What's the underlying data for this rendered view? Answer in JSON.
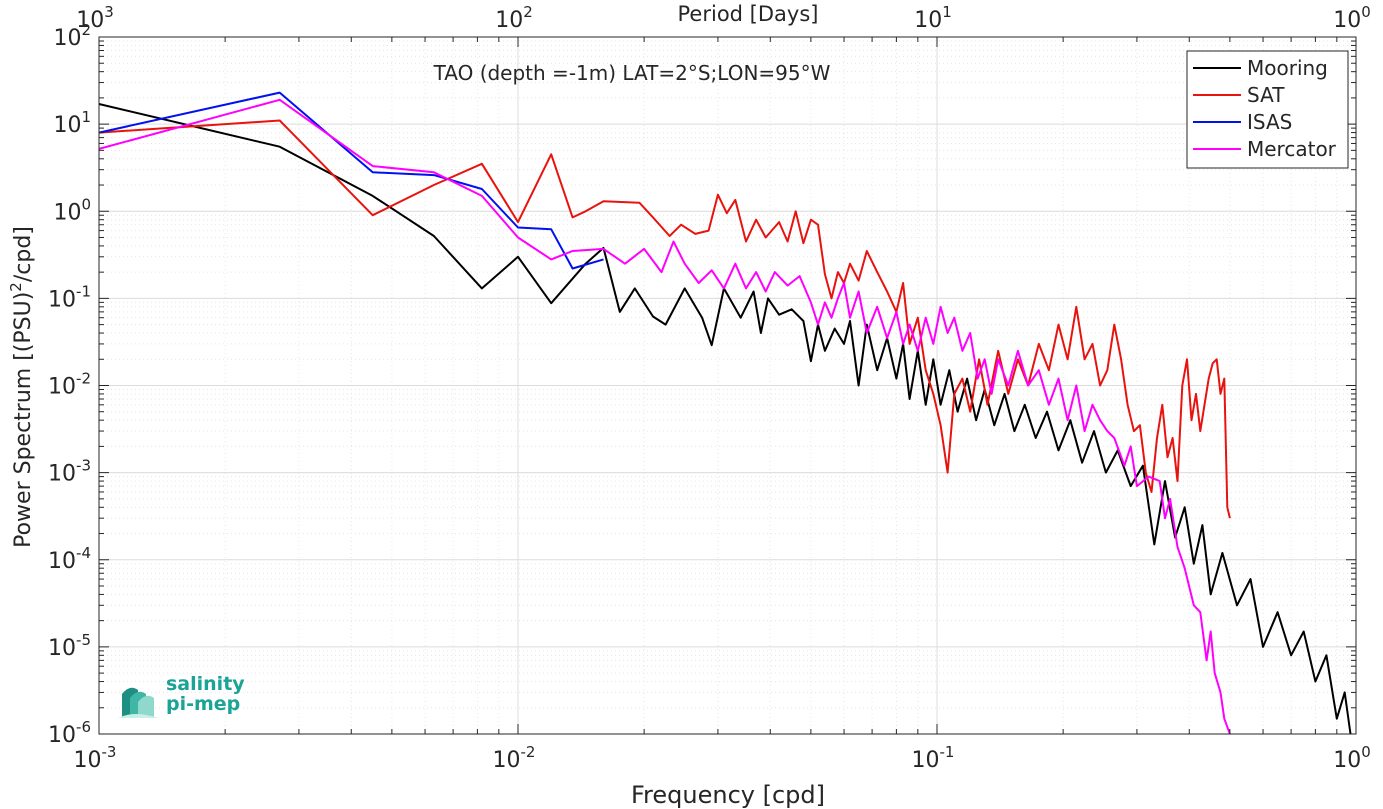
{
  "chart_data": {
    "type": "line",
    "title": "TAO (depth =-1m) LAT=2°S;LON=95°W",
    "xlabel": "Frequency [cpd]",
    "ylabel_main": "Power Spectrum [(PSU)",
    "ylabel_sup": "2",
    "ylabel_tail": "/cpd]",
    "top_axis_label": "Period [Days]",
    "x_scale": "log",
    "y_scale": "log",
    "xlim": [
      0.001,
      1
    ],
    "ylim": [
      1e-06,
      100
    ],
    "grid": true,
    "legend_position": "top-right",
    "x_ticks": [
      {
        "base": "10",
        "exp": "-3"
      },
      {
        "base": "10",
        "exp": "-2"
      },
      {
        "base": "10",
        "exp": "-1"
      },
      {
        "base": "10",
        "exp": "0"
      }
    ],
    "y_ticks": [
      {
        "base": "10",
        "exp": "-6"
      },
      {
        "base": "10",
        "exp": "-5"
      },
      {
        "base": "10",
        "exp": "-4"
      },
      {
        "base": "10",
        "exp": "-3"
      },
      {
        "base": "10",
        "exp": "-2"
      },
      {
        "base": "10",
        "exp": "-1"
      },
      {
        "base": "10",
        "exp": "0"
      },
      {
        "base": "10",
        "exp": "1"
      },
      {
        "base": "10",
        "exp": "2"
      }
    ],
    "top_ticks": [
      {
        "base": "10",
        "exp": "3"
      },
      {
        "base": "10",
        "exp": "2"
      },
      {
        "base": "10",
        "exp": "1"
      },
      {
        "base": "10",
        "exp": "0"
      }
    ],
    "series": [
      {
        "name": "Mooring",
        "color": "#000000",
        "points": [
          [
            0.001,
            17
          ],
          [
            0.0027,
            5.5
          ],
          [
            0.0045,
            1.5
          ],
          [
            0.0063,
            0.52
          ],
          [
            0.0082,
            0.13
          ],
          [
            0.01,
            0.3
          ],
          [
            0.012,
            0.088
          ],
          [
            0.0145,
            0.25
          ],
          [
            0.016,
            0.38
          ],
          [
            0.0175,
            0.07
          ],
          [
            0.019,
            0.13
          ],
          [
            0.021,
            0.062
          ],
          [
            0.0225,
            0.05
          ],
          [
            0.025,
            0.13
          ],
          [
            0.0275,
            0.06
          ],
          [
            0.029,
            0.029
          ],
          [
            0.031,
            0.13
          ],
          [
            0.034,
            0.06
          ],
          [
            0.0365,
            0.12
          ],
          [
            0.038,
            0.04
          ],
          [
            0.0395,
            0.1
          ],
          [
            0.042,
            0.065
          ],
          [
            0.045,
            0.075
          ],
          [
            0.048,
            0.055
          ],
          [
            0.05,
            0.019
          ],
          [
            0.052,
            0.05
          ],
          [
            0.054,
            0.025
          ],
          [
            0.057,
            0.045
          ],
          [
            0.06,
            0.03
          ],
          [
            0.062,
            0.055
          ],
          [
            0.065,
            0.01
          ],
          [
            0.068,
            0.05
          ],
          [
            0.072,
            0.015
          ],
          [
            0.076,
            0.035
          ],
          [
            0.08,
            0.012
          ],
          [
            0.083,
            0.03
          ],
          [
            0.086,
            0.007
          ],
          [
            0.09,
            0.025
          ],
          [
            0.094,
            0.006
          ],
          [
            0.098,
            0.02
          ],
          [
            0.102,
            0.006
          ],
          [
            0.107,
            0.015
          ],
          [
            0.112,
            0.005
          ],
          [
            0.118,
            0.012
          ],
          [
            0.124,
            0.004
          ],
          [
            0.13,
            0.009
          ],
          [
            0.137,
            0.0035
          ],
          [
            0.145,
            0.008
          ],
          [
            0.153,
            0.003
          ],
          [
            0.162,
            0.006
          ],
          [
            0.172,
            0.0025
          ],
          [
            0.183,
            0.005
          ],
          [
            0.195,
            0.0018
          ],
          [
            0.208,
            0.004
          ],
          [
            0.222,
            0.0013
          ],
          [
            0.237,
            0.003
          ],
          [
            0.253,
            0.001
          ],
          [
            0.27,
            0.0018
          ],
          [
            0.29,
            0.0007
          ],
          [
            0.31,
            0.0012
          ],
          [
            0.33,
            0.00015
          ],
          [
            0.35,
            0.0008
          ],
          [
            0.37,
            0.00018
          ],
          [
            0.39,
            0.0004
          ],
          [
            0.41,
            9e-05
          ],
          [
            0.43,
            0.00025
          ],
          [
            0.45,
            4e-05
          ],
          [
            0.48,
            0.00012
          ],
          [
            0.52,
            3e-05
          ],
          [
            0.56,
            6e-05
          ],
          [
            0.6,
            1e-05
          ],
          [
            0.65,
            2.5e-05
          ],
          [
            0.7,
            8e-06
          ],
          [
            0.75,
            1.5e-05
          ],
          [
            0.8,
            4e-06
          ],
          [
            0.85,
            8e-06
          ],
          [
            0.9,
            1.5e-06
          ],
          [
            0.94,
            3e-06
          ],
          [
            0.97,
            1e-06
          ]
        ]
      },
      {
        "name": "SAT",
        "color": "#e8130f",
        "points": [
          [
            0.001,
            8
          ],
          [
            0.0027,
            11
          ],
          [
            0.0045,
            0.9
          ],
          [
            0.0063,
            2
          ],
          [
            0.0082,
            3.5
          ],
          [
            0.01,
            0.75
          ],
          [
            0.012,
            4.5
          ],
          [
            0.0135,
            0.85
          ],
          [
            0.0145,
            1
          ],
          [
            0.016,
            1.3
          ],
          [
            0.0195,
            1.25
          ],
          [
            0.021,
            0.85
          ],
          [
            0.023,
            0.52
          ],
          [
            0.0245,
            0.7
          ],
          [
            0.0265,
            0.55
          ],
          [
            0.0285,
            0.6
          ],
          [
            0.03,
            1.55
          ],
          [
            0.0315,
            0.95
          ],
          [
            0.033,
            1.35
          ],
          [
            0.035,
            0.45
          ],
          [
            0.037,
            0.8
          ],
          [
            0.039,
            0.5
          ],
          [
            0.042,
            0.75
          ],
          [
            0.044,
            0.45
          ],
          [
            0.046,
            1
          ],
          [
            0.048,
            0.43
          ],
          [
            0.05,
            0.8
          ],
          [
            0.052,
            0.7
          ],
          [
            0.054,
            0.19
          ],
          [
            0.056,
            0.1
          ],
          [
            0.058,
            0.2
          ],
          [
            0.06,
            0.15
          ],
          [
            0.062,
            0.25
          ],
          [
            0.065,
            0.16
          ],
          [
            0.068,
            0.35
          ],
          [
            0.072,
            0.2
          ],
          [
            0.076,
            0.12
          ],
          [
            0.08,
            0.07
          ],
          [
            0.083,
            0.15
          ],
          [
            0.086,
            0.03
          ],
          [
            0.09,
            0.06
          ],
          [
            0.094,
            0.015
          ],
          [
            0.098,
            0.008
          ],
          [
            0.102,
            0.0035
          ],
          [
            0.106,
            0.001
          ],
          [
            0.11,
            0.008
          ],
          [
            0.115,
            0.012
          ],
          [
            0.12,
            0.005
          ],
          [
            0.126,
            0.02
          ],
          [
            0.132,
            0.006
          ],
          [
            0.14,
            0.025
          ],
          [
            0.148,
            0.008
          ],
          [
            0.156,
            0.02
          ],
          [
            0.165,
            0.01
          ],
          [
            0.175,
            0.03
          ],
          [
            0.185,
            0.015
          ],
          [
            0.195,
            0.05
          ],
          [
            0.205,
            0.02
          ],
          [
            0.215,
            0.08
          ],
          [
            0.225,
            0.02
          ],
          [
            0.235,
            0.03
          ],
          [
            0.245,
            0.01
          ],
          [
            0.255,
            0.015
          ],
          [
            0.265,
            0.05
          ],
          [
            0.275,
            0.02
          ],
          [
            0.285,
            0.006
          ],
          [
            0.295,
            0.003
          ],
          [
            0.305,
            0.0035
          ],
          [
            0.315,
            0.001
          ],
          [
            0.325,
            0.0006
          ],
          [
            0.335,
            0.0025
          ],
          [
            0.345,
            0.006
          ],
          [
            0.355,
            0.0015
          ],
          [
            0.365,
            0.0025
          ],
          [
            0.375,
            0.0008
          ],
          [
            0.385,
            0.01
          ],
          [
            0.395,
            0.02
          ],
          [
            0.405,
            0.004
          ],
          [
            0.415,
            0.008
          ],
          [
            0.425,
            0.003
          ],
          [
            0.435,
            0.006
          ],
          [
            0.445,
            0.012
          ],
          [
            0.455,
            0.018
          ],
          [
            0.465,
            0.02
          ],
          [
            0.475,
            0.008
          ],
          [
            0.485,
            0.012
          ],
          [
            0.493,
            0.0004
          ],
          [
            0.5,
            0.0003
          ]
        ]
      },
      {
        "name": "ISAS",
        "color": "#0010f0",
        "points": [
          [
            0.001,
            8
          ],
          [
            0.0027,
            23
          ],
          [
            0.0045,
            2.8
          ],
          [
            0.0063,
            2.6
          ],
          [
            0.0082,
            1.8
          ],
          [
            0.01,
            0.65
          ],
          [
            0.012,
            0.62
          ],
          [
            0.0135,
            0.22
          ],
          [
            0.016,
            0.28
          ]
        ]
      },
      {
        "name": "Mercator",
        "color": "#ff00ff",
        "points": [
          [
            0.001,
            5.2
          ],
          [
            0.0027,
            19
          ],
          [
            0.0045,
            3.3
          ],
          [
            0.0063,
            2.8
          ],
          [
            0.0082,
            1.5
          ],
          [
            0.01,
            0.5
          ],
          [
            0.012,
            0.28
          ],
          [
            0.0135,
            0.35
          ],
          [
            0.016,
            0.37
          ],
          [
            0.018,
            0.25
          ],
          [
            0.02,
            0.37
          ],
          [
            0.022,
            0.2
          ],
          [
            0.0235,
            0.45
          ],
          [
            0.025,
            0.25
          ],
          [
            0.027,
            0.15
          ],
          [
            0.029,
            0.21
          ],
          [
            0.031,
            0.13
          ],
          [
            0.033,
            0.25
          ],
          [
            0.035,
            0.13
          ],
          [
            0.037,
            0.2
          ],
          [
            0.039,
            0.12
          ],
          [
            0.041,
            0.2
          ],
          [
            0.044,
            0.14
          ],
          [
            0.047,
            0.18
          ],
          [
            0.05,
            0.09
          ],
          [
            0.052,
            0.05
          ],
          [
            0.054,
            0.09
          ],
          [
            0.056,
            0.06
          ],
          [
            0.058,
            0.1
          ],
          [
            0.06,
            0.15
          ],
          [
            0.062,
            0.06
          ],
          [
            0.065,
            0.12
          ],
          [
            0.068,
            0.04
          ],
          [
            0.072,
            0.08
          ],
          [
            0.076,
            0.035
          ],
          [
            0.08,
            0.07
          ],
          [
            0.083,
            0.03
          ],
          [
            0.086,
            0.05
          ],
          [
            0.09,
            0.025
          ],
          [
            0.094,
            0.06
          ],
          [
            0.098,
            0.03
          ],
          [
            0.102,
            0.08
          ],
          [
            0.106,
            0.04
          ],
          [
            0.11,
            0.06
          ],
          [
            0.115,
            0.025
          ],
          [
            0.12,
            0.04
          ],
          [
            0.125,
            0.012
          ],
          [
            0.13,
            0.02
          ],
          [
            0.135,
            0.008
          ],
          [
            0.14,
            0.02
          ],
          [
            0.148,
            0.01
          ],
          [
            0.156,
            0.025
          ],
          [
            0.165,
            0.01
          ],
          [
            0.175,
            0.015
          ],
          [
            0.185,
            0.006
          ],
          [
            0.195,
            0.012
          ],
          [
            0.205,
            0.004
          ],
          [
            0.215,
            0.01
          ],
          [
            0.225,
            0.003
          ],
          [
            0.235,
            0.006
          ],
          [
            0.245,
            0.004
          ],
          [
            0.255,
            0.003
          ],
          [
            0.265,
            0.0025
          ],
          [
            0.28,
            0.0012
          ],
          [
            0.29,
            0.002
          ],
          [
            0.3,
            0.0007
          ],
          [
            0.32,
            0.0009
          ],
          [
            0.34,
            0.0008
          ],
          [
            0.35,
            0.0003
          ],
          [
            0.36,
            0.0005
          ],
          [
            0.375,
            0.00014
          ],
          [
            0.39,
            8e-05
          ],
          [
            0.41,
            3e-05
          ],
          [
            0.425,
            2.5e-05
          ],
          [
            0.44,
            7e-06
          ],
          [
            0.45,
            1.5e-05
          ],
          [
            0.46,
            5e-06
          ],
          [
            0.475,
            3e-06
          ],
          [
            0.485,
            1.5e-06
          ],
          [
            0.5,
            1e-06
          ]
        ]
      }
    ]
  },
  "logo": {
    "line1": "salinity",
    "line2": "pi-mep"
  }
}
